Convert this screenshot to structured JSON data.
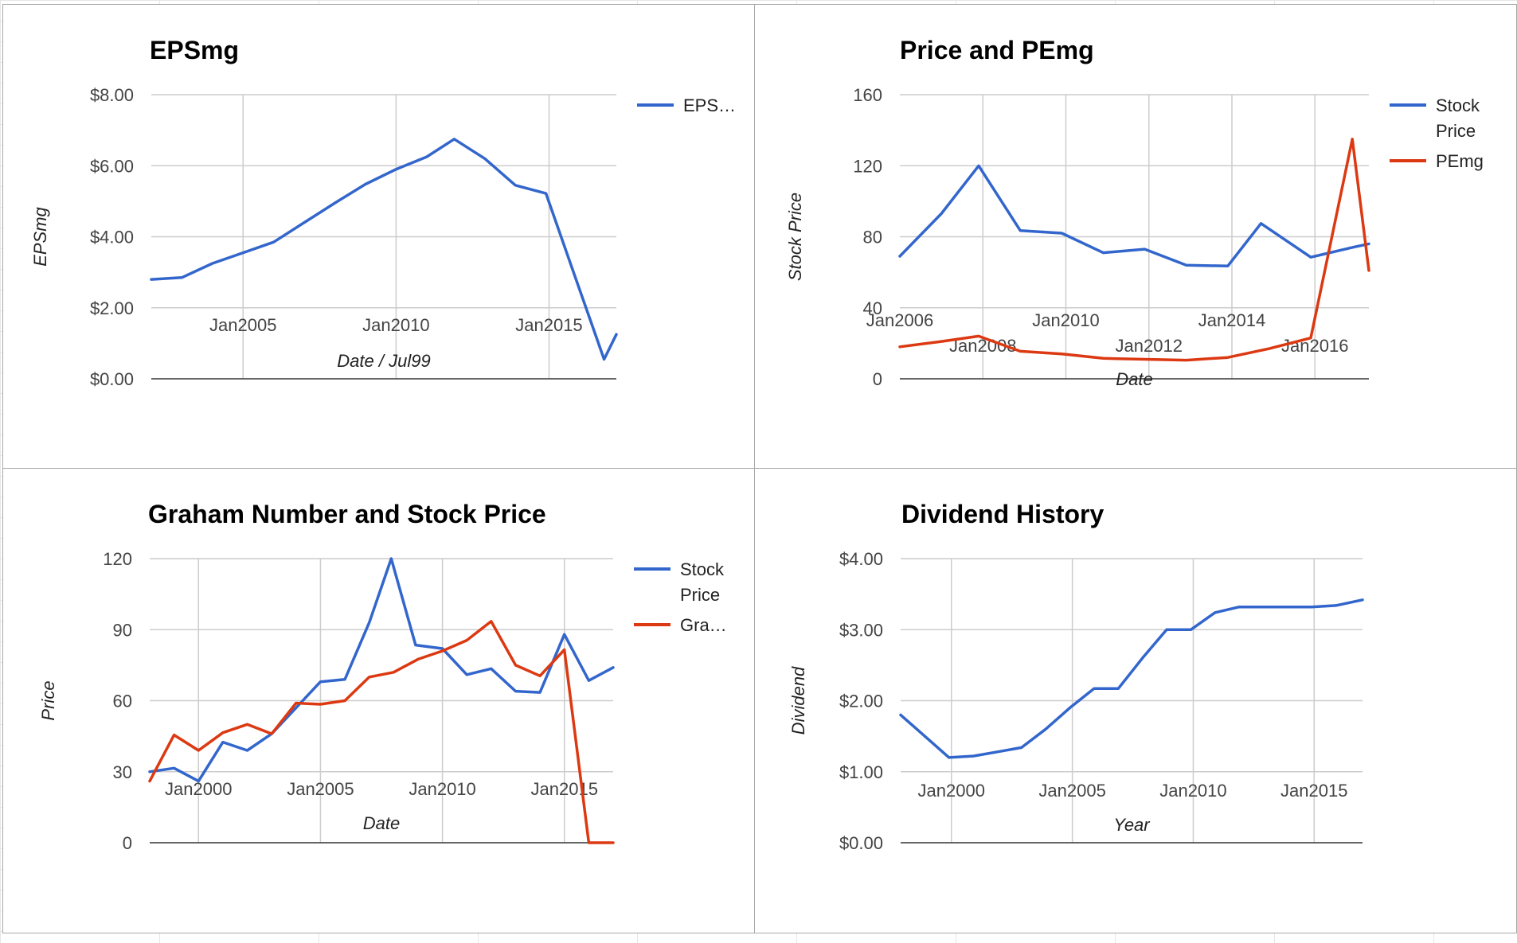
{
  "chart_data": [
    {
      "id": "eps",
      "type": "line",
      "title": "EPSmg",
      "xlabel": "Date / Jul99",
      "ylabel": "EPSmg",
      "xlim": [
        2002.0,
        2017.2
      ],
      "ylim": [
        0,
        8
      ],
      "yticks": [
        {
          "value": 0,
          "label": "$0.00"
        },
        {
          "value": 2,
          "label": "$2.00"
        },
        {
          "value": 4,
          "label": "$4.00"
        },
        {
          "value": 6,
          "label": "$6.00"
        },
        {
          "value": 8,
          "label": "$8.00"
        }
      ],
      "xticks": [
        {
          "value": 2005,
          "label": "Jan2005",
          "row": 0
        },
        {
          "value": 2010,
          "label": "Jan2010",
          "row": 0
        },
        {
          "value": 2015,
          "label": "Jan2015",
          "row": 0
        }
      ],
      "xgrid": [
        2005,
        2010,
        2015
      ],
      "legend": {
        "position": "right",
        "entries": [
          {
            "label": "EPS…",
            "color": "#3366cc"
          }
        ]
      },
      "series": [
        {
          "color": "#3366cc",
          "points": [
            [
              2002.0,
              2.8
            ],
            [
              2003.0,
              2.85
            ],
            [
              2004.0,
              3.25
            ],
            [
              2005.0,
              3.55
            ],
            [
              2006.0,
              3.85
            ],
            [
              2007.0,
              4.4
            ],
            [
              2008.0,
              4.95
            ],
            [
              2009.0,
              5.48
            ],
            [
              2010.0,
              5.9
            ],
            [
              2011.0,
              6.25
            ],
            [
              2011.9,
              6.75
            ],
            [
              2012.9,
              6.2
            ],
            [
              2013.9,
              5.45
            ],
            [
              2014.9,
              5.22
            ],
            [
              2015.8,
              3.0
            ],
            [
              2016.8,
              0.55
            ],
            [
              2017.2,
              1.25
            ]
          ]
        }
      ]
    },
    {
      "id": "price-pe",
      "type": "line",
      "title": "Price and PEmg",
      "xlabel": "Date",
      "ylabel": "Stock Price",
      "xlim": [
        2006.0,
        2017.3
      ],
      "ylim": [
        0,
        160
      ],
      "yticks": [
        {
          "value": 0,
          "label": "0"
        },
        {
          "value": 40,
          "label": "40"
        },
        {
          "value": 80,
          "label": "80"
        },
        {
          "value": 120,
          "label": "120"
        },
        {
          "value": 160,
          "label": "160"
        }
      ],
      "xticks": [
        {
          "value": 2006,
          "label": "Jan2006",
          "row": 0
        },
        {
          "value": 2008,
          "label": "Jan2008",
          "row": 1
        },
        {
          "value": 2010,
          "label": "Jan2010",
          "row": 0
        },
        {
          "value": 2012,
          "label": "Jan2012",
          "row": 1
        },
        {
          "value": 2014,
          "label": "Jan2014",
          "row": 0
        },
        {
          "value": 2016,
          "label": "Jan2016",
          "row": 1
        }
      ],
      "xgrid": [
        2008,
        2010,
        2012,
        2014,
        2016
      ],
      "legend": {
        "position": "right",
        "entries": [
          {
            "label": "Stock Price",
            "color": "#3366cc"
          },
          {
            "label": "PEmg",
            "color": "#dc3912"
          }
        ]
      },
      "series": [
        {
          "name": "Stock Price",
          "color": "#3366cc",
          "points": [
            [
              2006.0,
              69
            ],
            [
              2007.0,
              93
            ],
            [
              2007.9,
              120
            ],
            [
              2008.9,
              83.5
            ],
            [
              2009.9,
              82
            ],
            [
              2010.9,
              71
            ],
            [
              2011.9,
              73
            ],
            [
              2012.9,
              64
            ],
            [
              2013.9,
              63.5
            ],
            [
              2014.7,
              87.5
            ],
            [
              2015.9,
              68.5
            ],
            [
              2016.9,
              74
            ],
            [
              2017.3,
              76
            ]
          ]
        },
        {
          "name": "PEmg",
          "color": "#dc3912",
          "points": [
            [
              2006.0,
              18
            ],
            [
              2007.0,
              21
            ],
            [
              2007.9,
              24
            ],
            [
              2008.9,
              15.5
            ],
            [
              2009.9,
              14
            ],
            [
              2010.9,
              11.5
            ],
            [
              2011.9,
              11
            ],
            [
              2012.9,
              10.5
            ],
            [
              2013.9,
              12
            ],
            [
              2014.9,
              17
            ],
            [
              2015.9,
              23
            ],
            [
              2016.9,
              135
            ],
            [
              2017.3,
              61
            ]
          ]
        }
      ]
    },
    {
      "id": "graham",
      "type": "line",
      "title": "Graham Number and Stock Price",
      "xlabel": "Date",
      "ylabel": "Price",
      "xlim": [
        1998.0,
        2017.0
      ],
      "ylim": [
        0,
        120
      ],
      "yticks": [
        {
          "value": 0,
          "label": "0"
        },
        {
          "value": 30,
          "label": "30"
        },
        {
          "value": 60,
          "label": "60"
        },
        {
          "value": 90,
          "label": "90"
        },
        {
          "value": 120,
          "label": "120"
        }
      ],
      "xticks": [
        {
          "value": 2000,
          "label": "Jan2000",
          "row": 0
        },
        {
          "value": 2005,
          "label": "Jan2005",
          "row": 0
        },
        {
          "value": 2010,
          "label": "Jan2010",
          "row": 0
        },
        {
          "value": 2015,
          "label": "Jan2015",
          "row": 0
        }
      ],
      "xgrid": [
        2000,
        2005,
        2010,
        2015
      ],
      "legend": {
        "position": "right",
        "entries": [
          {
            "label": "Stock Price",
            "color": "#3366cc"
          },
          {
            "label": "Gra…",
            "color": "#dc3912"
          }
        ]
      },
      "series": [
        {
          "name": "Stock Price",
          "color": "#3366cc",
          "points": [
            [
              1998.0,
              30
            ],
            [
              1999.0,
              31.5
            ],
            [
              2000.0,
              26
            ],
            [
              2001.0,
              42.5
            ],
            [
              2002.0,
              39
            ],
            [
              2003.0,
              46
            ],
            [
              2004.0,
              57
            ],
            [
              2005.0,
              68
            ],
            [
              2006.0,
              69
            ],
            [
              2007.0,
              93
            ],
            [
              2007.9,
              120
            ],
            [
              2008.9,
              83.5
            ],
            [
              2010.0,
              82
            ],
            [
              2011.0,
              71
            ],
            [
              2012.0,
              73.5
            ],
            [
              2013.0,
              64
            ],
            [
              2014.0,
              63.5
            ],
            [
              2015.0,
              88
            ],
            [
              2016.0,
              68.5
            ],
            [
              2017.0,
              74
            ]
          ]
        },
        {
          "name": "Gra…",
          "color": "#dc3912",
          "points": [
            [
              1998.0,
              26
            ],
            [
              1999.0,
              45.5
            ],
            [
              2000.0,
              39
            ],
            [
              2001.0,
              46.5
            ],
            [
              2002.0,
              50
            ],
            [
              2003.0,
              46
            ],
            [
              2004.0,
              59
            ],
            [
              2005.0,
              58.5
            ],
            [
              2006.0,
              60
            ],
            [
              2007.0,
              70
            ],
            [
              2008.0,
              72
            ],
            [
              2009.0,
              77.5
            ],
            [
              2010.0,
              81
            ],
            [
              2011.0,
              85.5
            ],
            [
              2012.0,
              93.5
            ],
            [
              2013.0,
              75
            ],
            [
              2014.0,
              70.5
            ],
            [
              2015.0,
              81.5
            ],
            [
              2016.0,
              0
            ],
            [
              2017.0,
              0
            ]
          ]
        }
      ]
    },
    {
      "id": "dividend",
      "type": "line",
      "title": "Dividend History",
      "xlabel": "Year",
      "ylabel": "Dividend",
      "xlim": [
        1997.9,
        2017.0
      ],
      "ylim": [
        0,
        4
      ],
      "yticks": [
        {
          "value": 0,
          "label": "$0.00"
        },
        {
          "value": 1,
          "label": "$1.00"
        },
        {
          "value": 2,
          "label": "$2.00"
        },
        {
          "value": 3,
          "label": "$3.00"
        },
        {
          "value": 4,
          "label": "$4.00"
        }
      ],
      "xticks": [
        {
          "value": 2000,
          "label": "Jan2000",
          "row": 0
        },
        {
          "value": 2005,
          "label": "Jan2005",
          "row": 0
        },
        {
          "value": 2010,
          "label": "Jan2010",
          "row": 0
        },
        {
          "value": 2015,
          "label": "Jan2015",
          "row": 0
        }
      ],
      "xgrid": [
        2000,
        2005,
        2010,
        2015
      ],
      "legend": {
        "position": "none",
        "entries": []
      },
      "series": [
        {
          "color": "#3366cc",
          "points": [
            [
              1997.9,
              1.8
            ],
            [
              1999.9,
              1.2
            ],
            [
              2000.9,
              1.22
            ],
            [
              2001.9,
              1.28
            ],
            [
              2002.9,
              1.34
            ],
            [
              2003.9,
              1.6
            ],
            [
              2004.9,
              1.9
            ],
            [
              2005.9,
              2.17
            ],
            [
              2006.9,
              2.17
            ],
            [
              2007.9,
              2.6
            ],
            [
              2008.9,
              3.0
            ],
            [
              2009.9,
              3.0
            ],
            [
              2010.9,
              3.24
            ],
            [
              2011.9,
              3.32
            ],
            [
              2012.9,
              3.32
            ],
            [
              2013.9,
              3.32
            ],
            [
              2014.9,
              3.32
            ],
            [
              2015.9,
              3.34
            ],
            [
              2017.0,
              3.42
            ]
          ]
        }
      ]
    }
  ]
}
